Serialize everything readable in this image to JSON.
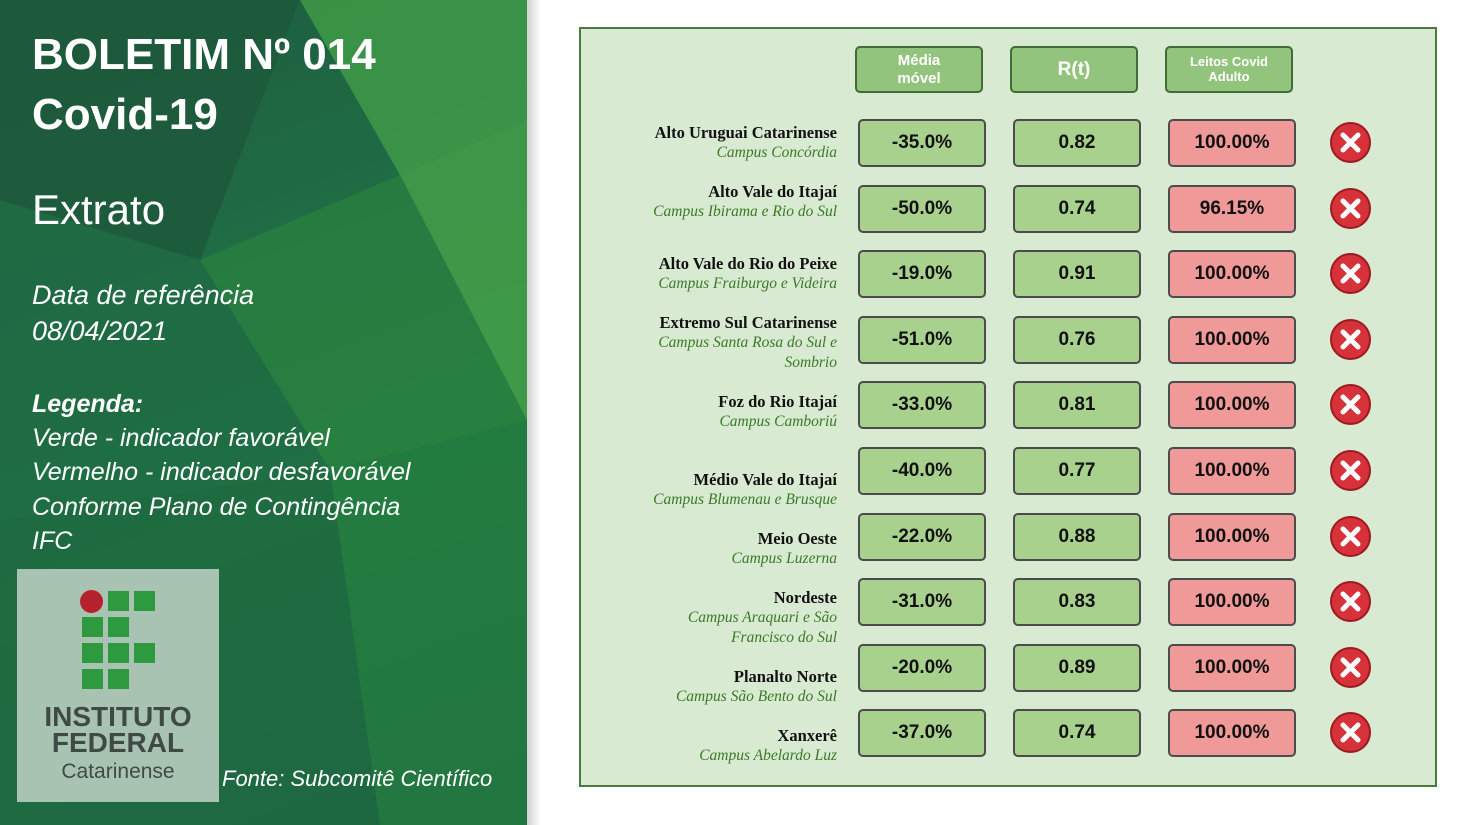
{
  "left_panel": {
    "title_line1": "BOLETIM Nº 014",
    "title_line2": "Covid-19",
    "subtitle": "Extrato",
    "date_label": "Data de referência",
    "date_value": "08/04/2021",
    "legend_title": "Legenda:",
    "legend_lines": [
      "Verde - indicador favorável",
      "Vermelho - indicador desfavorável",
      "Conforme Plano de Contingência",
      "IFC"
    ],
    "source": "Fonte: Subcomitê Científico",
    "logo": {
      "name_line1": "INSTITUTO",
      "name_line2": "FEDERAL",
      "subtitle": "Catarinense",
      "colors": {
        "squares": "#2d9a3f",
        "circle": "#b5222c"
      }
    }
  },
  "table": {
    "headers": {
      "media_line1": "Média",
      "media_line2": "móvel",
      "rt": "R(t)",
      "leitos_line1": "Leitos Covid",
      "leitos_line2": "Adulto"
    },
    "colors": {
      "favorable": "#a9d18e",
      "unfavorable": "#ef9999",
      "panel_bg": "#d9ead3"
    },
    "status_icon": "close-circle-icon",
    "rows": [
      {
        "region": "Alto Uruguai Catarinense",
        "campus": [
          "Campus Concórdia"
        ],
        "media": "-35.0%",
        "rt": "0.82",
        "leitos": "100.00%"
      },
      {
        "region": "Alto Vale do Itajaí",
        "campus": [
          "Campus Ibirama e Rio do Sul"
        ],
        "media": "-50.0%",
        "rt": "0.74",
        "leitos": "96.15%"
      },
      {
        "region": "Alto Vale do Rio do Peixe",
        "campus": [
          "Campus Fraiburgo e Videira"
        ],
        "media": "-19.0%",
        "rt": "0.91",
        "leitos": "100.00%"
      },
      {
        "region": "Extremo Sul Catarinense",
        "campus": [
          "Campus Santa Rosa do Sul e",
          "Sombrio"
        ],
        "media": "-51.0%",
        "rt": "0.76",
        "leitos": "100.00%"
      },
      {
        "region": "Foz do Rio Itajaí",
        "campus": [
          "Campus Camboriú"
        ],
        "media": "-33.0%",
        "rt": "0.81",
        "leitos": "100.00%"
      },
      {
        "region": "Médio Vale do Itajaí",
        "campus": [
          "Campus Blumenau e Brusque"
        ],
        "media": "-40.0%",
        "rt": "0.77",
        "leitos": "100.00%"
      },
      {
        "region": "Meio Oeste",
        "campus": [
          "Campus Luzerna"
        ],
        "media": "-22.0%",
        "rt": "0.88",
        "leitos": "100.00%"
      },
      {
        "region": "Nordeste",
        "campus": [
          "Campus Araquari e São",
          "Francisco do Sul"
        ],
        "media": "-31.0%",
        "rt": "0.83",
        "leitos": "100.00%"
      },
      {
        "region": "Planalto Norte",
        "campus": [
          "Campus São Bento do Sul"
        ],
        "media": "-20.0%",
        "rt": "0.89",
        "leitos": "100.00%"
      },
      {
        "region": "Xanxerê",
        "campus": [
          "Campus Abelardo Luz"
        ],
        "media": "-37.0%",
        "rt": "0.74",
        "leitos": "100.00%"
      }
    ]
  }
}
